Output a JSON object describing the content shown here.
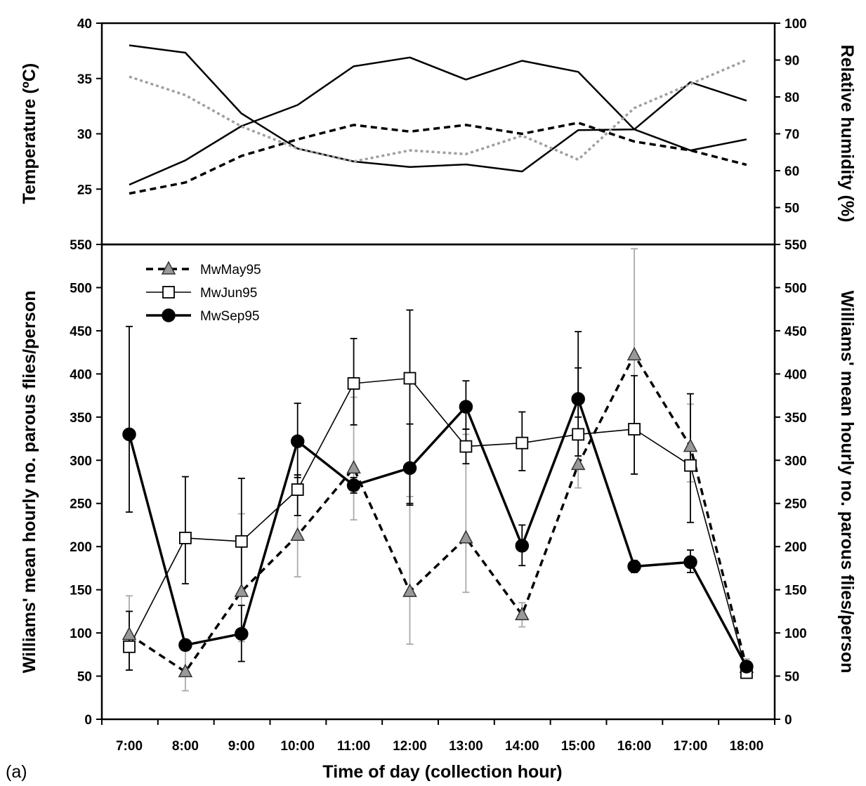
{
  "figure": {
    "panel_label": "(a)"
  },
  "chart_data": [
    {
      "type": "line",
      "ylabel": "Temperature (ºC)",
      "y2label": "Relative humidity (%)",
      "ylim": [
        20,
        40
      ],
      "y2lim": [
        40,
        100
      ],
      "yticks": [
        25,
        30,
        35,
        40
      ],
      "y2ticks": [
        50,
        60,
        70,
        80,
        90,
        100
      ],
      "x": [
        "7:00",
        "8:00",
        "9:00",
        "10:00",
        "11:00",
        "12:00",
        "13:00",
        "14:00",
        "15:00",
        "16:00",
        "17:00",
        "18:00"
      ],
      "series": [
        {
          "axis": "left",
          "style": "solid-thin",
          "color": "#000000",
          "values": [
            25.4,
            27.6,
            30.7,
            32.6,
            36.1,
            36.9,
            34.9,
            36.6,
            35.6,
            30.4,
            28.5,
            29.5
          ]
        },
        {
          "axis": "left",
          "style": "dashed",
          "color": "#000000",
          "values": [
            24.6,
            25.6,
            28.0,
            29.5,
            30.8,
            30.2,
            30.8,
            30.0,
            31.0,
            29.3,
            28.5,
            27.2
          ]
        },
        {
          "axis": "right",
          "style": "solid-thin",
          "color": "#000000",
          "values": [
            94.0,
            92.0,
            75.5,
            66.0,
            62.5,
            61.0,
            61.7,
            59.8,
            71.0,
            71.2,
            84.0,
            79.0
          ]
        },
        {
          "axis": "right",
          "style": "dotted",
          "color": "#a0a0a0",
          "values": [
            85.5,
            80.5,
            72.0,
            66.0,
            62.5,
            65.5,
            64.5,
            69.5,
            63.0,
            77.0,
            83.5,
            90.0
          ]
        }
      ]
    },
    {
      "type": "line",
      "xlabel": "Time of day (collection hour)",
      "ylabel": "Williams' mean hourly no. parous flies/person",
      "y2label": "Williams' mean hourly no. parous flies/person",
      "ylim": [
        0,
        550
      ],
      "yticks": [
        0,
        50,
        100,
        150,
        200,
        250,
        300,
        350,
        400,
        450,
        500,
        550
      ],
      "x": [
        "7:00",
        "8:00",
        "9:00",
        "10:00",
        "11:00",
        "12:00",
        "13:00",
        "14:00",
        "15:00",
        "16:00",
        "17:00",
        "18:00"
      ],
      "legend_position": "top-left",
      "series": [
        {
          "name": "MwMay95",
          "marker": "triangle",
          "line": "dashed",
          "color": "#999999",
          "errorbar_color": "#aaaaaa",
          "values": [
            98,
            55,
            148,
            213,
            291,
            148,
            210,
            121,
            295,
            422,
            316,
            60
          ],
          "err_low": [
            57,
            33,
            90,
            165,
            231,
            87,
            147,
            107,
            268,
            284,
            275,
            50
          ],
          "err_high": [
            143,
            80,
            238,
            283,
            373,
            258,
            330,
            135,
            330,
            545,
            365,
            70
          ]
        },
        {
          "name": "MwJun95",
          "marker": "square",
          "line": "solid-thin",
          "color": "#ffffff",
          "errorbar_color": "#000000",
          "values": [
            84,
            210,
            206,
            266,
            389,
            395,
            316,
            320,
            330,
            336,
            294,
            54
          ],
          "err_low": [
            57,
            157,
            146,
            236,
            341,
            248,
            296,
            288,
            305,
            284,
            228,
            50
          ],
          "err_high": [
            125,
            281,
            279,
            283,
            441,
            474,
            336,
            356,
            407,
            398,
            377,
            60
          ]
        },
        {
          "name": "MwSep95",
          "marker": "circle",
          "line": "solid-thick",
          "color": "#000000",
          "errorbar_color": "#000000",
          "values": [
            330,
            86,
            99,
            322,
            271,
            291,
            362,
            201,
            371,
            177,
            182,
            61
          ],
          "err_low": [
            240,
            80,
            67,
            280,
            262,
            250,
            336,
            178,
            350,
            170,
            170,
            57
          ],
          "err_high": [
            455,
            92,
            132,
            366,
            280,
            342,
            392,
            225,
            449,
            184,
            196,
            65
          ]
        }
      ]
    }
  ]
}
